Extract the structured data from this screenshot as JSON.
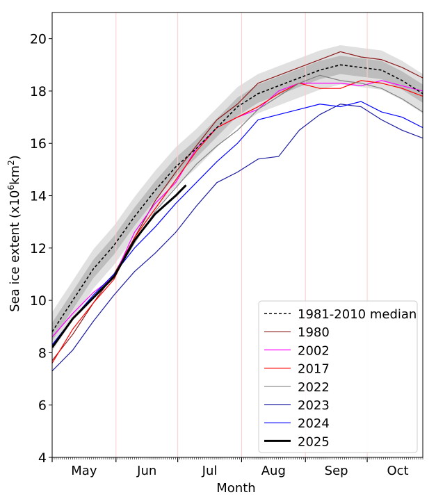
{
  "chart_data": {
    "type": "line",
    "xlabel": "Month",
    "ylabel": "Sea ice extent (x10",
    "ylabel_sup": "6",
    "ylabel_unit": "km",
    "ylabel_sup2": "2",
    "ylabel_end": ")",
    "ylim": [
      4,
      21
    ],
    "yticks": [
      4,
      6,
      8,
      10,
      12,
      14,
      16,
      18,
      20
    ],
    "xlim_days_from_may1": [
      0,
      180
    ],
    "month_labels": [
      {
        "label": "May",
        "start": 0
      },
      {
        "label": "Jun",
        "start": 31
      },
      {
        "label": "Jul",
        "start": 61
      },
      {
        "label": "Aug",
        "start": 92
      },
      {
        "label": "Sep",
        "start": 123
      },
      {
        "label": "Oct",
        "start": 153
      }
    ],
    "month_end": 184,
    "x": [
      0,
      10,
      20,
      30,
      40,
      50,
      60,
      70,
      80,
      90,
      100,
      110,
      120,
      130,
      140,
      150,
      160,
      170,
      180
    ],
    "median_bands": {
      "interquartile_offset": 0.35,
      "interdecile_offset": 0.75,
      "interquartile_color": "#bdbdbd",
      "interdecile_color": "#e0e0e0"
    },
    "series": [
      {
        "name": "1981-2010 median",
        "color": "#000000",
        "dashed": true,
        "width": 1.6,
        "values": [
          8.8,
          10.0,
          11.2,
          12.1,
          13.2,
          14.2,
          15.1,
          15.8,
          16.6,
          17.4,
          17.9,
          18.2,
          18.5,
          18.8,
          19.0,
          18.9,
          18.8,
          18.4,
          17.9
        ]
      },
      {
        "name": "1980",
        "color": "#8b1a1a",
        "width": 1.2,
        "values": [
          7.7,
          8.7,
          9.9,
          11.0,
          12.4,
          13.8,
          14.9,
          15.9,
          16.9,
          17.5,
          18.3,
          18.6,
          18.9,
          19.2,
          19.5,
          19.3,
          19.2,
          18.9,
          18.5
        ]
      },
      {
        "name": "2002",
        "color": "#ff00ff",
        "width": 1.2,
        "values": [
          8.6,
          9.5,
          10.3,
          10.9,
          12.6,
          13.7,
          14.5,
          15.8,
          16.6,
          17.0,
          17.3,
          18.0,
          18.3,
          18.3,
          18.3,
          18.2,
          18.4,
          18.2,
          18.0
        ]
      },
      {
        "name": "2017",
        "color": "#ff0000",
        "width": 1.2,
        "values": [
          7.6,
          8.9,
          9.9,
          10.8,
          12.4,
          13.5,
          14.6,
          15.7,
          16.6,
          17.0,
          17.4,
          17.9,
          18.3,
          18.1,
          18.1,
          18.4,
          18.3,
          18.1,
          17.8
        ]
      },
      {
        "name": "2022",
        "color": "#808080",
        "width": 1.2,
        "values": [
          8.3,
          9.3,
          10.2,
          10.9,
          12.2,
          13.4,
          14.3,
          15.2,
          15.9,
          16.5,
          17.3,
          17.8,
          18.3,
          18.6,
          18.4,
          18.3,
          18.1,
          17.7,
          17.2
        ]
      },
      {
        "name": "2023",
        "color": "#1a1aa0",
        "width": 1.2,
        "values": [
          7.3,
          8.1,
          9.2,
          10.2,
          11.1,
          11.8,
          12.6,
          13.6,
          14.5,
          14.9,
          15.4,
          15.5,
          16.5,
          17.1,
          17.5,
          17.4,
          16.9,
          16.5,
          16.2
        ]
      },
      {
        "name": "2024",
        "color": "#0000ff",
        "width": 1.2,
        "values": [
          8.3,
          9.3,
          10.2,
          11.0,
          12.0,
          12.8,
          13.7,
          14.5,
          15.3,
          16.0,
          16.9,
          17.1,
          17.3,
          17.5,
          17.4,
          17.6,
          17.2,
          17.0,
          16.6
        ]
      },
      {
        "name": "2025",
        "color": "#000000",
        "width": 3,
        "x": [
          0,
          10,
          20,
          30,
          40,
          50,
          60,
          65
        ],
        "values": [
          8.2,
          9.3,
          10.1,
          10.9,
          12.3,
          13.3,
          14.0,
          14.4
        ]
      }
    ],
    "legend_placement": "lower-right",
    "month_boundary_color": "#ffcccc"
  }
}
